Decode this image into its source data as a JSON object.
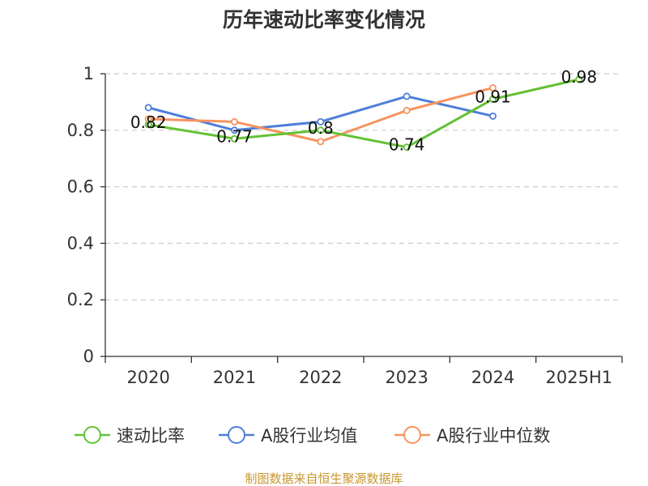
{
  "chart_data": {
    "type": "line",
    "title": "历年速动比率变化情况",
    "categories": [
      "2020",
      "2021",
      "2022",
      "2023",
      "2024",
      "2025H1"
    ],
    "ylim": [
      0,
      1
    ],
    "yticks": [
      "0",
      "0.2",
      "0.4",
      "0.6",
      "0.8",
      "1"
    ],
    "ytick_values": [
      0,
      0.2,
      0.4,
      0.6,
      0.8,
      1
    ],
    "grid": true,
    "legend_position": "bottom",
    "series": [
      {
        "name": "速动比率",
        "color": "#62c235",
        "values": [
          0.82,
          0.77,
          0.8,
          0.74,
          0.91,
          0.98
        ],
        "labels": [
          "0.82",
          "0.77",
          "0.8",
          "0.74",
          "0.91",
          "0.98"
        ]
      },
      {
        "name": "A股行业均值",
        "color": "#4e7fd9",
        "values": [
          0.88,
          0.8,
          0.83,
          0.92,
          0.85,
          null
        ]
      },
      {
        "name": "A股行业中位数",
        "color": "#f7935e",
        "values": [
          0.84,
          0.83,
          0.76,
          0.87,
          0.95,
          null
        ]
      }
    ]
  },
  "source": {
    "text": "制图数据来自恒生聚源数据库",
    "color": "#c8962f"
  }
}
